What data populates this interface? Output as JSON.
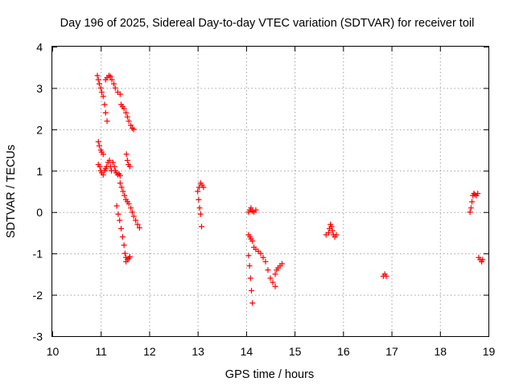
{
  "chart_data": {
    "type": "scatter",
    "title": "Day 196 of 2025, Sidereal Day-to-day VTEC variation (SDTVAR) for receiver toil",
    "xlabel": "GPS time / hours",
    "ylabel": "SDTVAR / TECUs",
    "xlim": [
      10,
      19
    ],
    "ylim": [
      -3,
      4
    ],
    "xticks": [
      "10",
      "11",
      "12",
      "13",
      "14",
      "15",
      "16",
      "17",
      "18",
      "19"
    ],
    "yticks": [
      "-3",
      "-2",
      "-1",
      "0",
      "1",
      "2",
      "3",
      "4"
    ],
    "grid": true,
    "marker": "plus",
    "color": "#ff0000",
    "segments": [
      {
        "x": [
          10.93,
          10.95,
          10.97,
          11.0,
          11.02,
          11.05,
          11.08,
          11.1,
          11.13
        ],
        "y": [
          3.3,
          3.2,
          3.1,
          3.0,
          2.9,
          2.8,
          2.6,
          2.4,
          2.2
        ]
      },
      {
        "x": [
          11.1,
          11.13,
          11.17,
          11.2,
          11.23,
          11.27,
          11.3,
          11.35,
          11.4
        ],
        "y": [
          3.2,
          3.25,
          3.3,
          3.28,
          3.2,
          3.1,
          3.0,
          2.9,
          2.85
        ]
      },
      {
        "x": [
          11.42,
          11.45,
          11.48,
          11.52,
          11.55,
          11.58,
          11.62,
          11.65,
          11.68
        ],
        "y": [
          2.6,
          2.55,
          2.5,
          2.4,
          2.3,
          2.2,
          2.1,
          2.03,
          2.0
        ]
      },
      {
        "x": [
          10.95,
          10.97,
          11.0,
          11.02,
          11.05
        ],
        "y": [
          1.7,
          1.6,
          1.5,
          1.45,
          1.4
        ]
      },
      {
        "x": [
          10.95,
          10.98,
          11.0,
          11.02,
          11.05,
          11.08,
          11.1,
          11.12,
          11.15,
          11.18,
          11.2,
          11.22,
          11.25,
          11.28,
          11.3,
          11.32,
          11.35,
          11.38,
          11.4
        ],
        "y": [
          1.15,
          1.1,
          1.0,
          0.95,
          0.9,
          1.0,
          1.05,
          1.1,
          1.2,
          1.25,
          1.1,
          1.0,
          1.2,
          1.1,
          1.0,
          0.95,
          0.9,
          0.92,
          0.88
        ]
      },
      {
        "x": [
          11.4,
          11.43,
          11.46,
          11.49,
          11.52,
          11.55,
          11.58,
          11.62,
          11.65,
          11.68,
          11.72,
          11.76,
          11.8
        ],
        "y": [
          0.7,
          0.6,
          0.5,
          0.4,
          0.3,
          0.25,
          0.2,
          0.1,
          0.0,
          -0.1,
          -0.2,
          -0.3,
          -0.38
        ]
      },
      {
        "x": [
          11.53,
          11.55,
          11.57,
          11.6
        ],
        "y": [
          1.4,
          1.25,
          1.15,
          1.1
        ]
      },
      {
        "x": [
          11.33,
          11.36,
          11.39,
          11.42,
          11.45,
          11.48,
          11.5,
          11.52
        ],
        "y": [
          0.15,
          -0.05,
          -0.2,
          -0.4,
          -0.6,
          -0.8,
          -1.0,
          -1.2
        ]
      },
      {
        "x": [
          11.52,
          11.55,
          11.58,
          11.6
        ],
        "y": [
          -1.1,
          -1.15,
          -1.12,
          -1.08
        ]
      },
      {
        "x": [
          13.0,
          13.03,
          13.06,
          13.09,
          13.12
        ],
        "y": [
          0.5,
          0.6,
          0.7,
          0.65,
          0.6
        ]
      },
      {
        "x": [
          13.02,
          13.04,
          13.06,
          13.08
        ],
        "y": [
          0.3,
          0.1,
          -0.05,
          -0.35
        ]
      },
      {
        "x": [
          14.05,
          14.08,
          14.1,
          14.13,
          14.16,
          14.2
        ],
        "y": [
          0.0,
          0.05,
          0.1,
          0.02,
          0.0,
          0.05
        ]
      },
      {
        "x": [
          14.05,
          14.08,
          14.1,
          14.13,
          14.16,
          14.2,
          14.25,
          14.3,
          14.35,
          14.4,
          14.45,
          14.5,
          14.55,
          14.6
        ],
        "y": [
          -0.55,
          -0.6,
          -0.65,
          -0.7,
          -0.85,
          -0.9,
          -0.95,
          -1.0,
          -1.1,
          -1.2,
          -1.4,
          -1.6,
          -1.7,
          -1.8
        ]
      },
      {
        "x": [
          14.05,
          14.07,
          14.09,
          14.11,
          14.13
        ],
        "y": [
          -1.05,
          -1.3,
          -1.6,
          -1.9,
          -2.2
        ]
      },
      {
        "x": [
          14.6,
          14.63,
          14.66,
          14.7,
          14.74
        ],
        "y": [
          -1.5,
          -1.4,
          -1.35,
          -1.3,
          -1.25
        ]
      },
      {
        "x": [
          15.65,
          15.7,
          15.72,
          15.74,
          15.76,
          15.78,
          15.8,
          15.83,
          15.86
        ],
        "y": [
          -0.55,
          -0.5,
          -0.4,
          -0.3,
          -0.35,
          -0.45,
          -0.55,
          -0.6,
          -0.55
        ]
      },
      {
        "x": [
          16.83,
          16.86,
          16.89
        ],
        "y": [
          -1.55,
          -1.5,
          -1.55
        ]
      },
      {
        "x": [
          18.62,
          18.64,
          18.66,
          18.68,
          18.7,
          18.72,
          18.75,
          18.78
        ],
        "y": [
          0.0,
          0.1,
          0.25,
          0.4,
          0.45,
          0.42,
          0.4,
          0.45
        ]
      },
      {
        "x": [
          18.8,
          18.83,
          18.86,
          18.88
        ],
        "y": [
          -1.1,
          -1.15,
          -1.2,
          -1.15
        ]
      }
    ]
  }
}
